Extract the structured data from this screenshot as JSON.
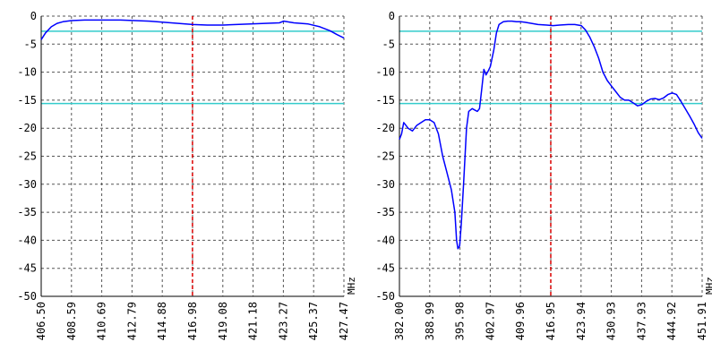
{
  "colors": {
    "background": "#ffffff",
    "grid": "#555555",
    "axis": "#000000",
    "trace": "#0000ff",
    "limit_line": "#33cccc",
    "marker": "#dd0000"
  },
  "chart_data": [
    {
      "type": "line",
      "name": "left-plot",
      "title": "",
      "xlabel": "MHz",
      "ylabel": "",
      "xlim": [
        406.5,
        427.47
      ],
      "ylim": [
        -50,
        0
      ],
      "grid": true,
      "x_ticks": [
        "406.50",
        "408.59",
        "410.69",
        "412.79",
        "414.88",
        "416.98",
        "419.08",
        "421.18",
        "423.27",
        "425.37",
        "427.47"
      ],
      "y_ticks": [
        "0",
        "-5",
        "-10",
        "-15",
        "-20",
        "-25",
        "-30",
        "-35",
        "-40",
        "-45",
        "-50"
      ],
      "limit_lines": [
        -2.7,
        -15.6
      ],
      "marker_x": 416.98,
      "series": [
        {
          "x": [
            406.5,
            406.8,
            407.2,
            407.6,
            408.0,
            408.6,
            409.5,
            410.7,
            412.0,
            413.0,
            414.0,
            415.0,
            416.0,
            417.0,
            418.0,
            419.1,
            420.0,
            421.0,
            422.0,
            423.0,
            423.3,
            424.0,
            425.0,
            425.8,
            426.5,
            427.0,
            427.47
          ],
          "y": [
            -4.2,
            -3.0,
            -1.9,
            -1.3,
            -1.0,
            -0.8,
            -0.7,
            -0.7,
            -0.7,
            -0.8,
            -0.9,
            -1.1,
            -1.3,
            -1.5,
            -1.6,
            -1.6,
            -1.5,
            -1.4,
            -1.3,
            -1.2,
            -0.9,
            -1.2,
            -1.4,
            -1.9,
            -2.6,
            -3.3,
            -3.9
          ]
        }
      ]
    },
    {
      "type": "line",
      "name": "right-plot",
      "title": "",
      "xlabel": "MHz",
      "ylabel": "",
      "xlim": [
        382.0,
        451.91
      ],
      "ylim": [
        -50,
        0
      ],
      "grid": true,
      "x_ticks": [
        "382.00",
        "388.99",
        "395.98",
        "402.97",
        "409.96",
        "416.95",
        "423.94",
        "430.93",
        "437.93",
        "444.92",
        "451.91"
      ],
      "y_ticks": [
        "0",
        "-5",
        "-10",
        "-15",
        "-20",
        "-25",
        "-30",
        "-35",
        "-40",
        "-45",
        "-50"
      ],
      "limit_lines": [
        -2.7,
        -15.6
      ],
      "marker_x": 416.95,
      "series": [
        {
          "x": [
            382.0,
            382.5,
            383.0,
            384.0,
            385.0,
            386.0,
            387.0,
            388.0,
            389.0,
            390.0,
            391.0,
            392.0,
            393.0,
            394.0,
            394.8,
            395.2,
            395.5,
            395.9,
            396.3,
            396.8,
            397.5,
            398.0,
            398.8,
            399.5,
            400.0,
            400.5,
            401.0,
            401.5,
            402.0,
            402.5,
            403.0,
            403.8,
            404.4,
            405.0,
            406.0,
            407.0,
            408.0,
            409.0,
            410.0,
            411.0,
            412.5,
            414.0,
            416.0,
            417.5,
            419.0,
            421.0,
            422.5,
            424.0,
            425.0,
            426.0,
            427.0,
            428.0,
            429.0,
            430.0,
            431.0,
            432.0,
            433.0,
            434.0,
            435.0,
            436.0,
            437.0,
            438.0,
            439.0,
            440.0,
            441.0,
            442.0,
            443.0,
            444.0,
            445.0,
            446.0,
            447.0,
            448.0,
            449.0,
            450.0,
            451.0,
            451.91
          ],
          "y": [
            -22.0,
            -21.0,
            -19.0,
            -20.0,
            -20.5,
            -19.5,
            -19.0,
            -18.5,
            -18.5,
            -19.0,
            -21.0,
            -25.0,
            -28.0,
            -31.0,
            -35.0,
            -40.0,
            -41.5,
            -41.0,
            -37.0,
            -30.0,
            -20.0,
            -17.0,
            -16.5,
            -16.8,
            -17.0,
            -16.5,
            -13.0,
            -9.5,
            -10.5,
            -9.8,
            -9.0,
            -6.0,
            -3.0,
            -1.5,
            -1.0,
            -0.9,
            -0.9,
            -1.0,
            -1.0,
            -1.1,
            -1.3,
            -1.5,
            -1.6,
            -1.7,
            -1.6,
            -1.5,
            -1.5,
            -1.7,
            -2.5,
            -3.8,
            -5.5,
            -7.5,
            -10.0,
            -11.5,
            -12.5,
            -13.5,
            -14.5,
            -15.0,
            -15.0,
            -15.5,
            -16.0,
            -15.8,
            -15.2,
            -14.8,
            -14.7,
            -14.9,
            -14.6,
            -14.0,
            -13.7,
            -14.0,
            -15.2,
            -16.5,
            -17.8,
            -19.2,
            -20.8,
            -21.8
          ]
        }
      ]
    }
  ]
}
